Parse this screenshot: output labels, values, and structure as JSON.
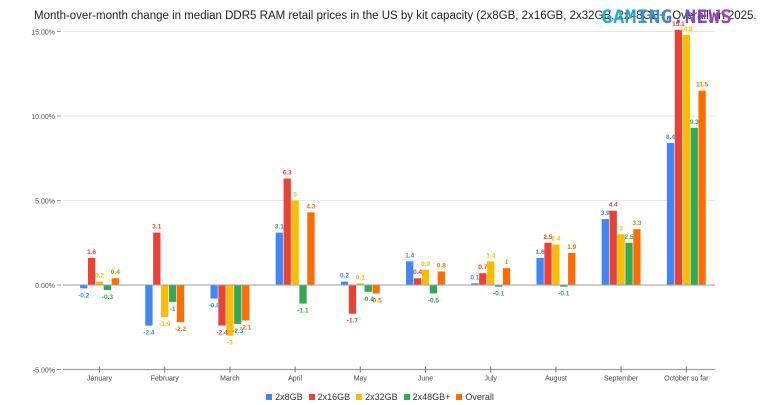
{
  "header": {
    "title": "Month-over-month change in median DDR5 RAM retail prices in the US by kit capacity (2x8GB, 2x16GB, 2x32GB, 2x48GB+, Overall) in 2025.",
    "logo": "GAMING.NEWS"
  },
  "legend": [
    {
      "name": "2x8GB",
      "color": "#4285f4"
    },
    {
      "name": "2x16GB",
      "color": "#ea4335"
    },
    {
      "name": "2x32GB",
      "color": "#fbbc04"
    },
    {
      "name": "2x48GB+",
      "color": "#34a853"
    },
    {
      "name": "Overall",
      "color": "#ff6d01"
    }
  ],
  "chart_data": {
    "type": "bar",
    "title": "Month-over-month change in median DDR5 RAM retail prices in the US by kit capacity (2x8GB, 2x16GB, 2x32GB, 2x48GB+, Overall) in 2025.",
    "xlabel": "",
    "ylabel": "",
    "ylim": [
      -5,
      15
    ],
    "yticks": [
      "-5.00%",
      "0.00%",
      "5.00%",
      "10.00%",
      "15.00%"
    ],
    "grid": true,
    "legend_position": "bottom",
    "categories": [
      "January",
      "February",
      "March",
      "April",
      "May",
      "June",
      "July",
      "August",
      "September",
      "October so far"
    ],
    "series": [
      {
        "name": "2x8GB",
        "color": "#4285f4",
        "values": [
          -0.2,
          -2.4,
          -0.8,
          3.1,
          0.2,
          1.4,
          0.1,
          1.6,
          3.9,
          8.4
        ]
      },
      {
        "name": "2x16GB",
        "color": "#ea4335",
        "values": [
          1.6,
          3.1,
          -2.4,
          6.3,
          -1.7,
          0.4,
          0.7,
          2.5,
          4.4,
          15.1
        ]
      },
      {
        "name": "2x32GB",
        "color": "#fbbc04",
        "values": [
          0.2,
          -1.9,
          -3,
          5,
          0.1,
          0.9,
          1.4,
          2.4,
          3,
          14.8
        ]
      },
      {
        "name": "2x48GB+",
        "color": "#34a853",
        "values": [
          -0.3,
          -1,
          -2.3,
          -1.1,
          -0.4,
          -0.5,
          -0.1,
          -0.1,
          2.5,
          9.3
        ]
      },
      {
        "name": "Overall",
        "color": "#ff6d01",
        "values": [
          0.4,
          -2.2,
          -2.1,
          4.3,
          -0.5,
          0.8,
          1,
          1.9,
          3.3,
          11.5
        ]
      }
    ]
  }
}
